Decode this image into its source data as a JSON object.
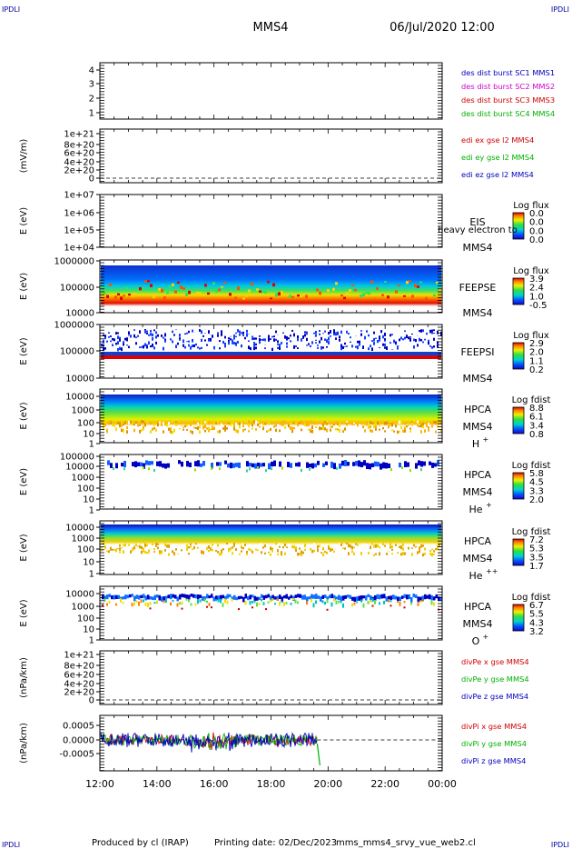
{
  "header": {
    "corner_label": "IPDLI",
    "spacecraft": "MMS4",
    "datetime": "06/Jul/2020 12:00"
  },
  "footer": {
    "produced_by": "Produced by cl (IRAP)",
    "printing_date": "Printing date: 02/Dec/2023",
    "filename": "mms_mms4_srvy_vue_web2.cl"
  },
  "chart_data": {
    "type": "multi-panel time series",
    "x_ticks": [
      "12:00",
      "14:00",
      "16:00",
      "18:00",
      "20:00",
      "22:00",
      "00:00"
    ],
    "panels": [
      {
        "id": "des",
        "type": "status",
        "ylabel": "",
        "ticks": [
          "4",
          "3",
          "2",
          "1"
        ],
        "legend": [
          {
            "text": "des dist burst SC1 MMS1",
            "color": "#0000c0"
          },
          {
            "text": "des dist burst SC2 MMS2",
            "color": "#d000d0"
          },
          {
            "text": "des dist burst SC3 MMS3",
            "color": "#d00000"
          },
          {
            "text": "des dist burst SC4 MMS4",
            "color": "#00b000"
          }
        ]
      },
      {
        "id": "edi",
        "type": "line",
        "ylabel": "(mV/m)",
        "ticks": [
          "1e+21",
          "8e+20",
          "6e+20",
          "4e+20",
          "2e+20",
          "0"
        ],
        "legend": [
          {
            "text": "edi ex gse l2 MMS4",
            "color": "#d00000"
          },
          {
            "text": "edi ey gse l2 MMS4",
            "color": "#00b000"
          },
          {
            "text": "edi ez gse l2 MMS4",
            "color": "#0000c0"
          }
        ]
      },
      {
        "id": "eis",
        "type": "heatmap",
        "ylabel": "E (eV)",
        "ticks": [
          "1e+07",
          "1e+06",
          "1e+05",
          "1e+04"
        ],
        "instrument": "EIS",
        "instrument_sub": "heavy electron to",
        "spacecraft": "MMS4",
        "colorbar_title": "Log flux",
        "colorbar_ticks": [
          "0.0",
          "0.0",
          "0.0",
          "0.0"
        ]
      },
      {
        "id": "feepse",
        "type": "heatmap",
        "ylabel": "E (eV)",
        "ticks": [
          "1000000",
          "100000",
          "10000"
        ],
        "instrument": "FEEPSE",
        "spacecraft": "MMS4",
        "colorbar_title": "Log flux",
        "colorbar_ticks": [
          "3.9",
          "2.4",
          "1.0",
          "-0.5"
        ]
      },
      {
        "id": "feepsi",
        "type": "heatmap",
        "ylabel": "E (eV)",
        "ticks": [
          "1000000",
          "100000",
          "10000"
        ],
        "instrument": "FEEPSI",
        "spacecraft": "MMS4",
        "colorbar_title": "Log flux",
        "colorbar_ticks": [
          "2.9",
          "2.0",
          "1.1",
          "0.2"
        ]
      },
      {
        "id": "hpca_h",
        "type": "heatmap",
        "ylabel": "E (eV)",
        "ticks": [
          "10000",
          "1000",
          "100",
          "10",
          "1"
        ],
        "instrument": "HPCA",
        "spacecraft": "MMS4",
        "species": "H",
        "species_sup": "+",
        "colorbar_title": "Log fdist",
        "colorbar_ticks": [
          "8.8",
          "6.1",
          "3.4",
          "0.8"
        ]
      },
      {
        "id": "hpca_he1",
        "type": "heatmap",
        "ylabel": "E (eV)",
        "ticks": [
          "100000",
          "10000",
          "1000",
          "100",
          "10",
          "1"
        ],
        "instrument": "HPCA",
        "spacecraft": "MMS4",
        "species": "He",
        "species_sup": "+",
        "colorbar_title": "Log fdist",
        "colorbar_ticks": [
          "5.8",
          "4.5",
          "3.3",
          "2.0"
        ]
      },
      {
        "id": "hpca_he2",
        "type": "heatmap",
        "ylabel": "E (eV)",
        "ticks": [
          "10000",
          "1000",
          "100",
          "10",
          "1"
        ],
        "instrument": "HPCA",
        "spacecraft": "MMS4",
        "species": "He",
        "species_sup": "++",
        "colorbar_title": "Log fdist",
        "colorbar_ticks": [
          "7.2",
          "5.3",
          "3.5",
          "1.7"
        ]
      },
      {
        "id": "hpca_o",
        "type": "heatmap",
        "ylabel": "E (eV)",
        "ticks": [
          "10000",
          "1000",
          "100",
          "10",
          "1"
        ],
        "instrument": "HPCA",
        "spacecraft": "MMS4",
        "species": "O",
        "species_sup": "+",
        "colorbar_title": "Log fdist",
        "colorbar_ticks": [
          "6.7",
          "5.5",
          "4.3",
          "3.2"
        ]
      },
      {
        "id": "divpe",
        "type": "line",
        "ylabel": "(nPa/km)",
        "ticks": [
          "1e+21",
          "8e+20",
          "6e+20",
          "4e+20",
          "2e+20",
          "0"
        ],
        "legend": [
          {
            "text": "divPe x gse MMS4",
            "color": "#d00000"
          },
          {
            "text": "divPe y gse MMS4",
            "color": "#00b000"
          },
          {
            "text": "divPe z gse MMS4",
            "color": "#0000c0"
          }
        ]
      },
      {
        "id": "divpi",
        "type": "line",
        "ylabel": "(nPa/km)",
        "ticks": [
          "0.0005",
          "0.0000",
          "-0.0005"
        ],
        "legend": [
          {
            "text": "divPi x gse MMS4",
            "color": "#d00000"
          },
          {
            "text": "divPi y gse MMS4",
            "color": "#00b000"
          },
          {
            "text": "divPi z gse MMS4",
            "color": "#0000c0"
          }
        ]
      }
    ]
  }
}
